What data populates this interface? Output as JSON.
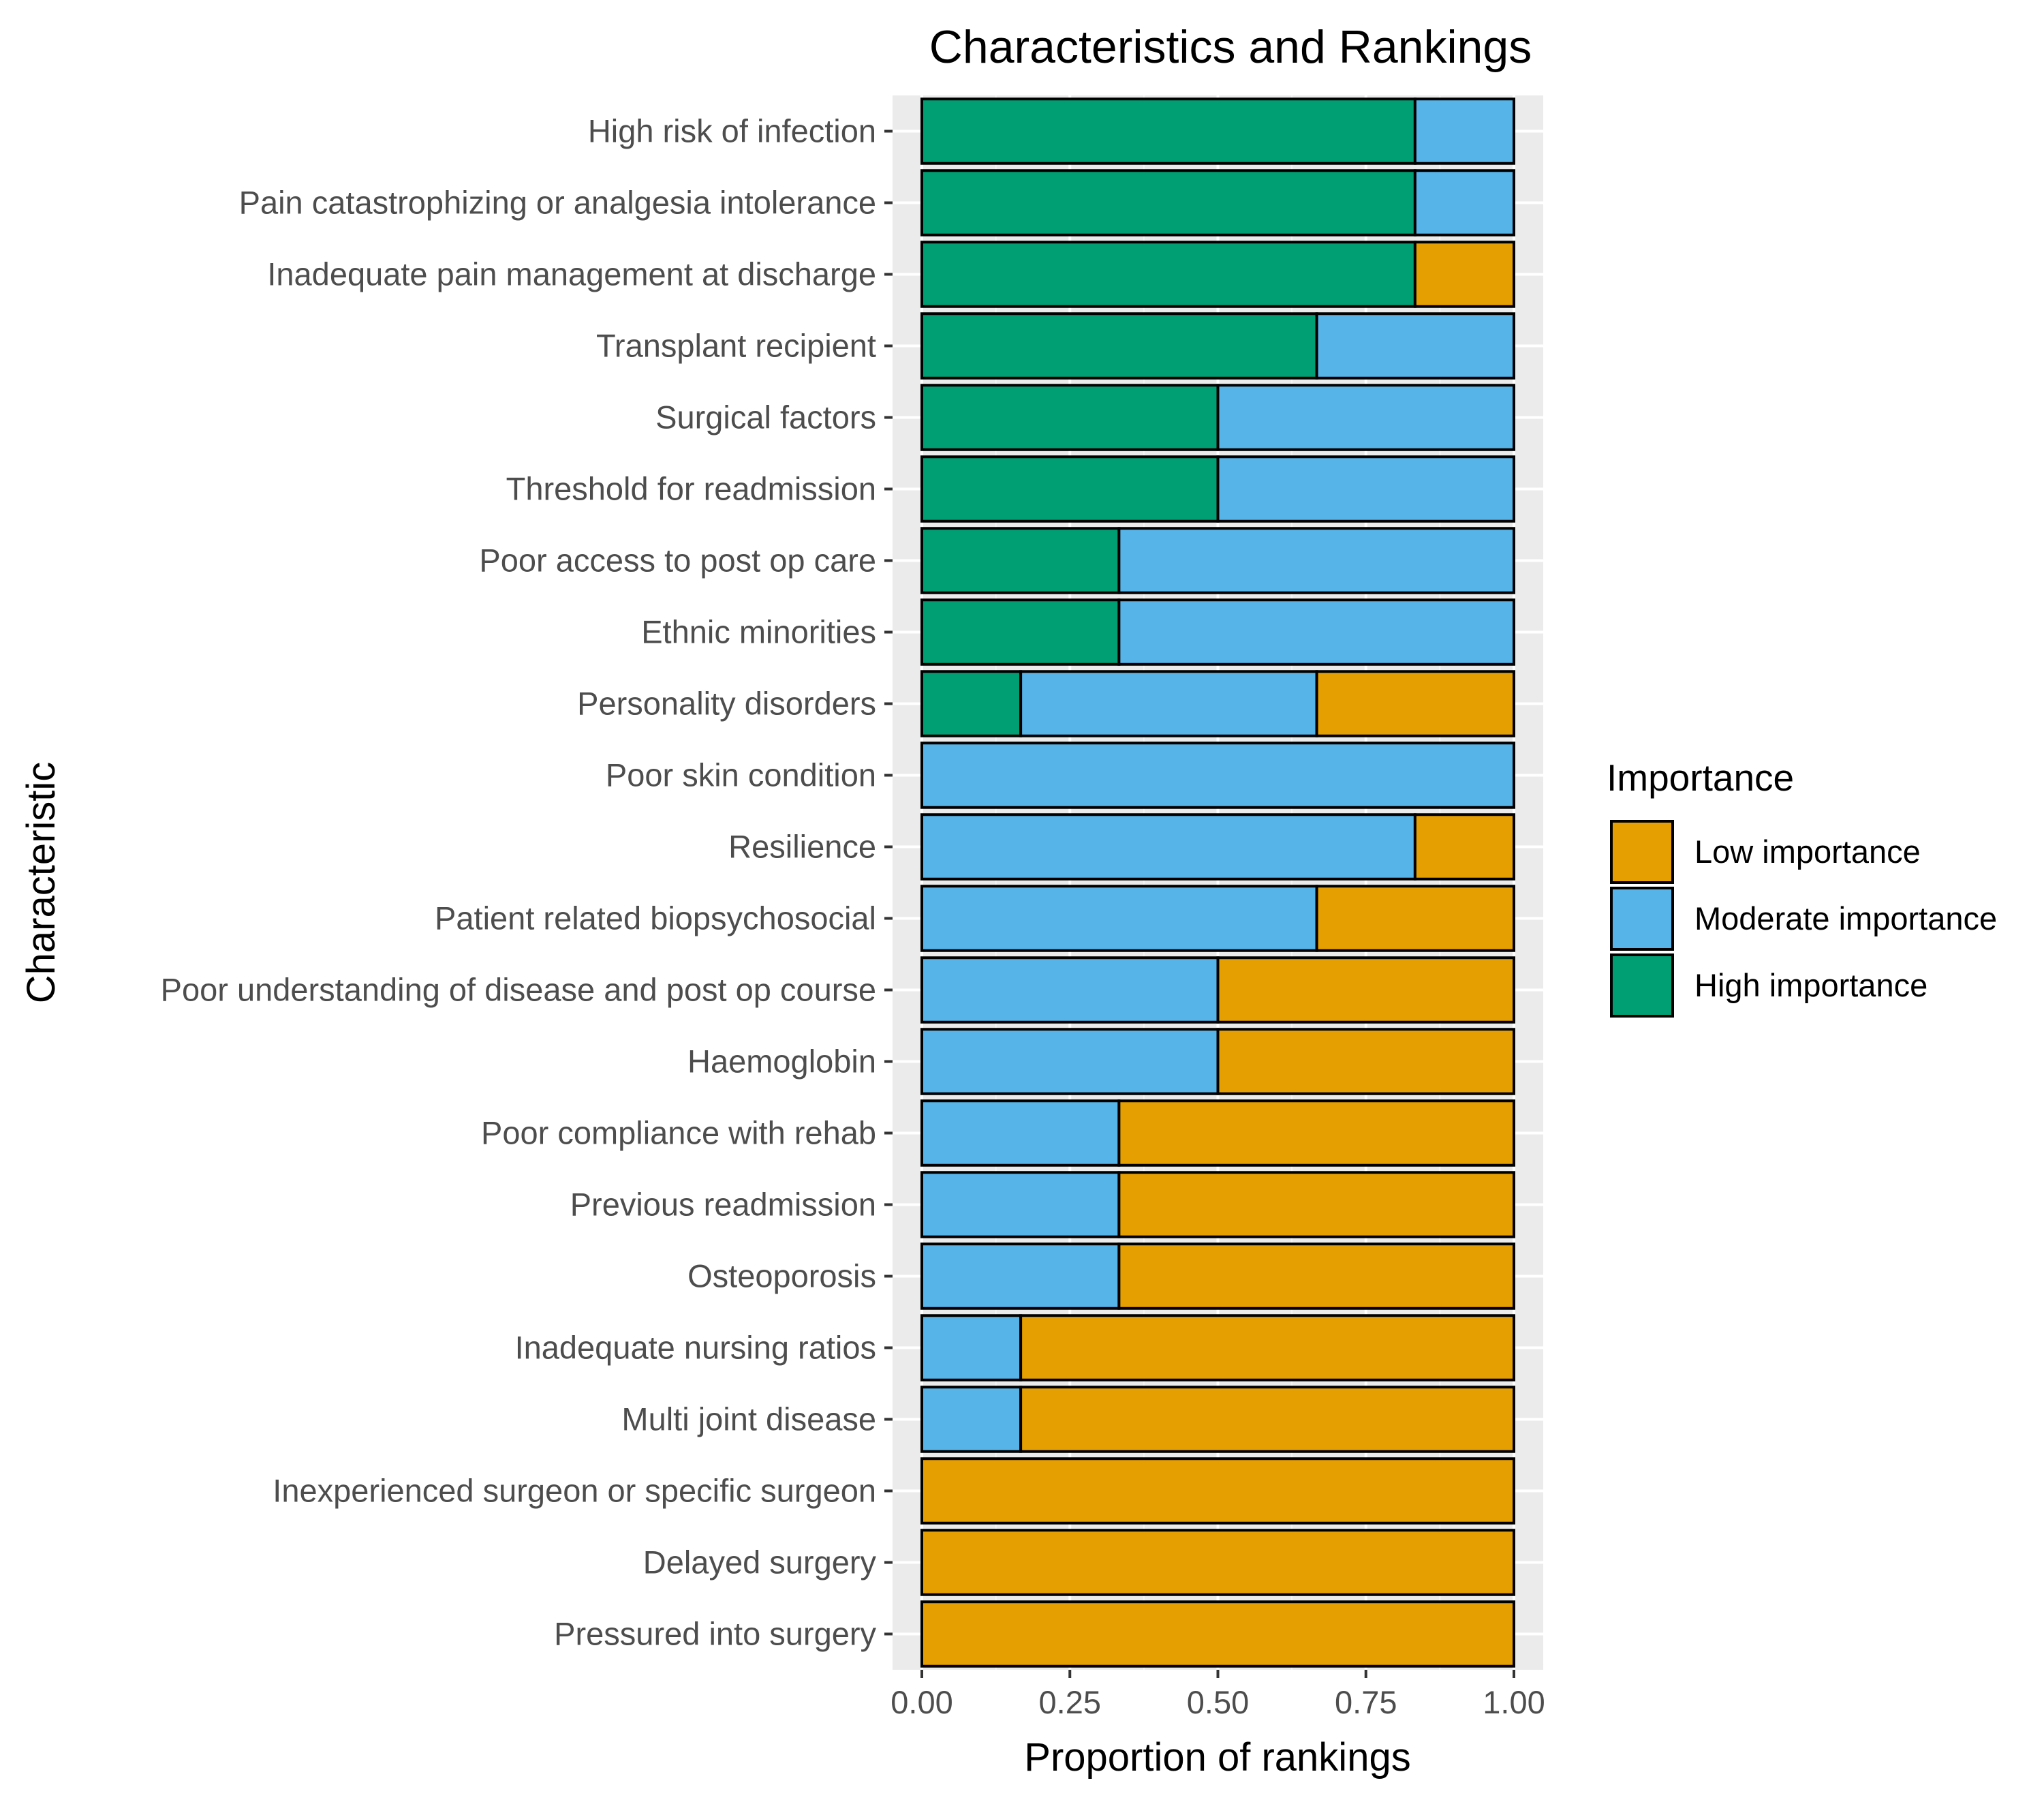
{
  "chart_data": {
    "type": "bar",
    "orientation": "horizontal",
    "stacked": true,
    "title": "Characteristics and Rankings",
    "xlabel": "Proportion of rankings",
    "ylabel": "Characteristic",
    "xlim": [
      0,
      1
    ],
    "xticks": [
      "0.00",
      "0.25",
      "0.50",
      "0.75",
      "1.00"
    ],
    "xtick_values": [
      0,
      0.25,
      0.5,
      0.75,
      1.0
    ],
    "grid": true,
    "legend": {
      "title": "Importance",
      "position": "right",
      "entries": [
        "Low importance",
        "Moderate importance",
        "High importance"
      ]
    },
    "categories": [
      "High risk of infection",
      "Pain catastrophizing or analgesia intolerance",
      "Inadequate pain management at discharge",
      "Transplant recipient",
      "Surgical factors",
      "Threshold for readmission",
      "Poor access to post op care",
      "Ethnic minorities",
      "Personality disorders",
      "Poor skin condition",
      "Resilience",
      "Patient related biopsychosocial",
      "Poor understanding of disease and post op course",
      "Haemoglobin",
      "Poor compliance with rehab",
      "Previous readmission",
      "Osteoporosis",
      "Inadequate nursing ratios",
      "Multi joint disease",
      "Inexperienced surgeon or specific surgeon",
      "Delayed surgery",
      "Pressured into surgery"
    ],
    "series": [
      {
        "name": "High importance",
        "color": "#009E73",
        "values": [
          0.833,
          0.833,
          0.833,
          0.667,
          0.5,
          0.5,
          0.333,
          0.333,
          0.167,
          0,
          0,
          0,
          0,
          0,
          0,
          0,
          0,
          0,
          0,
          0,
          0,
          0
        ]
      },
      {
        "name": "Moderate importance",
        "color": "#56B4E9",
        "values": [
          0.167,
          0.167,
          0,
          0.333,
          0.5,
          0.5,
          0.667,
          0.667,
          0.5,
          1.0,
          0.833,
          0.667,
          0.5,
          0.5,
          0.333,
          0.333,
          0.333,
          0.167,
          0.167,
          0,
          0,
          0
        ]
      },
      {
        "name": "Low importance",
        "color": "#E69F00",
        "values": [
          0,
          0,
          0.167,
          0,
          0,
          0,
          0,
          0,
          0.333,
          0,
          0.167,
          0.333,
          0.5,
          0.5,
          0.667,
          0.667,
          0.667,
          0.833,
          0.833,
          1.0,
          1.0,
          1.0
        ]
      }
    ]
  }
}
